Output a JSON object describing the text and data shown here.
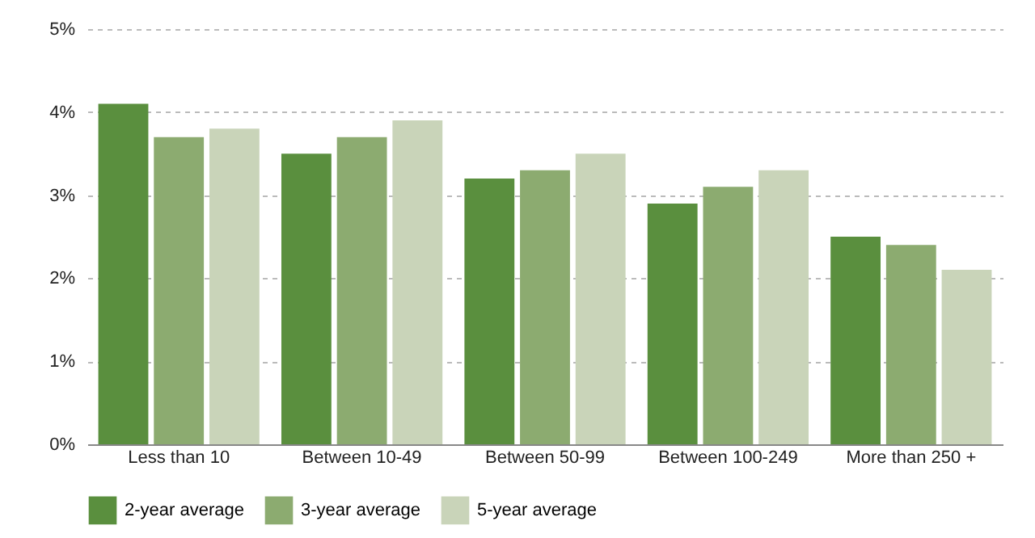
{
  "chart_data": {
    "type": "bar",
    "categories": [
      "Less than 10",
      "Between 10-49",
      "Between 50-99",
      "Between 100-249",
      "More than 250 +"
    ],
    "series": [
      {
        "name": "2-year average",
        "color": "#5a8f3e",
        "values": [
          4.1,
          3.5,
          3.2,
          2.9,
          2.5
        ]
      },
      {
        "name": "3-year average",
        "color": "#8cab70",
        "values": [
          3.7,
          3.7,
          3.3,
          3.1,
          2.4
        ]
      },
      {
        "name": "5-year average",
        "color": "#c9d4b9",
        "values": [
          3.8,
          3.9,
          3.5,
          3.3,
          2.1
        ]
      }
    ],
    "ylim": [
      0,
      5
    ],
    "yticks": [
      {
        "value": 0,
        "label": "0%"
      },
      {
        "value": 1,
        "label": "1%"
      },
      {
        "value": 2,
        "label": "2%"
      },
      {
        "value": 3,
        "label": "3%"
      },
      {
        "value": 4,
        "label": "4%"
      },
      {
        "value": 5,
        "label": "5%"
      }
    ],
    "grid": "y",
    "legend": "bottom"
  }
}
